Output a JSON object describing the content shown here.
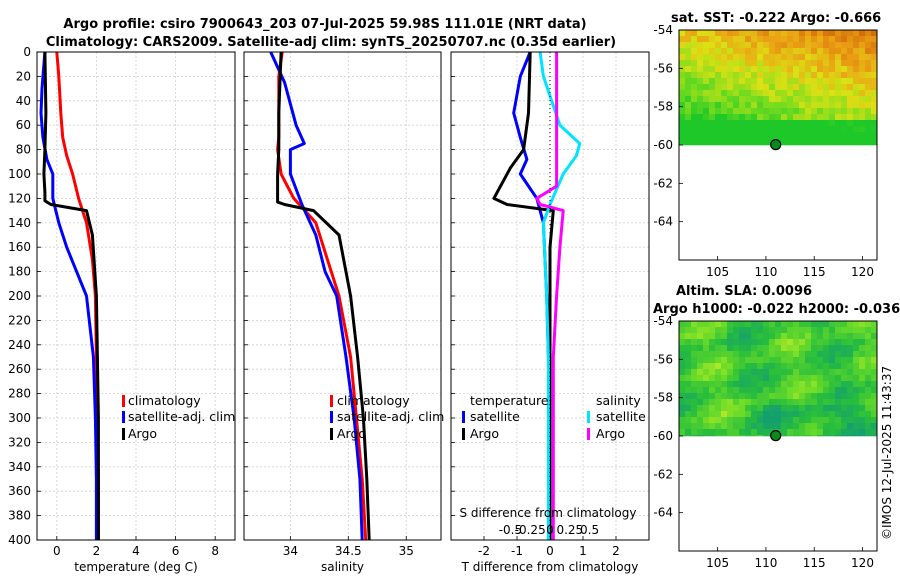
{
  "title_line1": "Argo profile: csiro 7900643_203 07-Jul-2025 59.98S 111.01E (NRT data)",
  "title_line2": "Climatology: CARS2009. Satellite-adj clim: synTS_20250707.nc (0.35d earlier)",
  "colors": {
    "climatology": "#ff0000",
    "satellite": "#0000ff",
    "argo": "#000000",
    "sat_salinity": "#00e5ff",
    "argo_salinity": "#ff00ff"
  },
  "depth_ticks": [
    "0",
    "20",
    "40",
    "60",
    "80",
    "100",
    "120",
    "140",
    "160",
    "180",
    "200",
    "220",
    "240",
    "260",
    "280",
    "300",
    "320",
    "340",
    "360",
    "380",
    "400"
  ],
  "chart_data": [
    {
      "type": "line",
      "id": "temperature",
      "xlabel": "temperature (deg C)",
      "xlim": [
        -1,
        9
      ],
      "ylim": [
        0,
        400
      ],
      "xtick_values": [
        0,
        2,
        4,
        6,
        8
      ],
      "xtick_labels": [
        "0",
        "2",
        "4",
        "6",
        "8"
      ],
      "legend": [
        "climatology",
        "satellite-adj. clim",
        "Argo"
      ],
      "series": [
        {
          "name": "climatology",
          "color": "#ff0000",
          "x": [
            0,
            0.1,
            0.2,
            0.3,
            0.5,
            0.8,
            1.1,
            1.5,
            1.8,
            1.95,
            2.0,
            2.05,
            2.1,
            2.1
          ],
          "y": [
            0,
            20,
            50,
            70,
            85,
            100,
            120,
            140,
            170,
            200,
            250,
            300,
            350,
            400
          ]
        },
        {
          "name": "satellite-adj. clim",
          "color": "#0000ff",
          "x": [
            -0.6,
            -0.75,
            -0.8,
            -0.7,
            -0.5,
            -0.2,
            -0.2,
            0.1,
            0.5,
            1.0,
            1.5,
            1.85,
            1.95,
            2.0,
            2.0
          ],
          "y": [
            0,
            30,
            50,
            70,
            88,
            100,
            120,
            140,
            160,
            180,
            200,
            250,
            300,
            350,
            400
          ]
        },
        {
          "name": "Argo",
          "color": "#000000",
          "x": [
            -0.6,
            -0.55,
            -0.6,
            -0.65,
            -0.6,
            -0.6,
            -0.3,
            1.5,
            1.8,
            2.0,
            2.05,
            2.1,
            2.1,
            2.1
          ],
          "y": [
            0,
            50,
            80,
            100,
            115,
            122,
            125,
            130,
            150,
            200,
            250,
            300,
            350,
            400
          ]
        }
      ]
    },
    {
      "type": "line",
      "id": "salinity",
      "xlabel": "salinity",
      "xlim": [
        33.6,
        35.3
      ],
      "ylim": [
        0,
        400
      ],
      "xtick_values": [
        34,
        34.5,
        35
      ],
      "xtick_labels": [
        "34",
        "34.5",
        "35"
      ],
      "legend": [
        "climatology",
        "satellite-adj. clim",
        "Argo"
      ],
      "series": [
        {
          "name": "climatology",
          "color": "#ff0000",
          "x": [
            33.93,
            33.9,
            33.9,
            33.9,
            33.89,
            33.92,
            34.03,
            34.22,
            34.32,
            34.42,
            34.52,
            34.57,
            34.62,
            34.65
          ],
          "y": [
            0,
            20,
            50,
            70,
            80,
            100,
            120,
            140,
            170,
            200,
            250,
            300,
            350,
            400
          ]
        },
        {
          "name": "satellite-adj. clim",
          "color": "#0000ff",
          "x": [
            33.83,
            33.95,
            34.05,
            34.12,
            34.0,
            34.0,
            34.1,
            34.22,
            34.3,
            34.4,
            34.48,
            34.55,
            34.6,
            34.62
          ],
          "y": [
            0,
            25,
            60,
            75,
            80,
            100,
            125,
            150,
            180,
            200,
            250,
            300,
            350,
            400
          ]
        },
        {
          "name": "Argo",
          "color": "#000000",
          "x": [
            33.92,
            33.9,
            33.9,
            33.89,
            33.89,
            33.89,
            33.95,
            34.2,
            34.42,
            34.52,
            34.58,
            34.63,
            34.66,
            34.68
          ],
          "y": [
            0,
            50,
            80,
            100,
            115,
            123,
            125,
            130,
            150,
            200,
            250,
            300,
            350,
            400
          ]
        }
      ]
    },
    {
      "type": "line",
      "id": "difference",
      "xlabel": "T difference from climatology",
      "xlabel2": "S difference from climatology",
      "xlim": [
        -3,
        3
      ],
      "ylim": [
        0,
        400
      ],
      "xtick_values": [
        -2,
        -1,
        0,
        1,
        2
      ],
      "xtick_labels": [
        "-2",
        "-1",
        "0",
        "1",
        "2"
      ],
      "s_tick_labels": [
        "-0.5",
        "-0.25",
        "0",
        "0.25",
        "0.5"
      ],
      "legend_left_header": "temperature",
      "legend_right_header": "salinity",
      "legend_left": [
        "satellite",
        "Argo"
      ],
      "legend_right": [
        "satellite",
        "Argo"
      ],
      "series": [
        {
          "name": "T satellite",
          "color": "#0000ff",
          "x": [
            -0.6,
            -0.9,
            -1.1,
            -0.9,
            -0.7,
            -0.9,
            -0.4,
            -0.2,
            -0.15,
            -0.1,
            -0.05,
            0,
            0
          ],
          "y": [
            0,
            20,
            50,
            70,
            88,
            100,
            120,
            140,
            170,
            200,
            250,
            300,
            400
          ]
        },
        {
          "name": "T Argo",
          "color": "#000000",
          "x": [
            -0.6,
            -0.65,
            -0.8,
            -1.2,
            -1.5,
            -1.7,
            -1.3,
            0.1,
            0.0,
            0.0,
            0.0,
            0.0,
            0.0
          ],
          "y": [
            0,
            50,
            80,
            95,
            110,
            120,
            125,
            130,
            160,
            200,
            250,
            300,
            400
          ]
        },
        {
          "name": "S satellite",
          "color": "#00e5ff",
          "x": [
            -0.3,
            -0.2,
            0.3,
            0.9,
            0.8,
            0.4,
            0.0,
            -0.2,
            -0.15,
            -0.1,
            -0.05,
            -0.05,
            -0.05
          ],
          "y": [
            0,
            20,
            60,
            75,
            85,
            100,
            125,
            140,
            170,
            200,
            250,
            300,
            400
          ]
        },
        {
          "name": "S Argo",
          "color": "#ff00ff",
          "x": [
            0.2,
            0.2,
            0.2,
            0.2,
            0.2,
            -0.4,
            -0.3,
            0.4,
            0.3,
            0.2,
            0.1,
            0.1,
            0.1
          ],
          "y": [
            0,
            40,
            80,
            100,
            110,
            120,
            125,
            130,
            160,
            200,
            250,
            300,
            400
          ]
        }
      ]
    },
    {
      "type": "heatmap",
      "id": "sst_map",
      "title": "sat. SST: -0.222 Argo: -0.666",
      "xlim": [
        101,
        121.5
      ],
      "ylim": [
        -66,
        -54
      ],
      "xtick_values": [
        105,
        110,
        115,
        120
      ],
      "xtick_labels": [
        "105",
        "110",
        "115",
        "120"
      ],
      "ytick_values": [
        -54,
        -56,
        -58,
        -60,
        -62,
        -64
      ],
      "ytick_labels": [
        "-54",
        "-56",
        "-58",
        "-60",
        "-62",
        "-64"
      ],
      "data_extent_lat": [
        -60,
        -54
      ],
      "argo_position": {
        "lon": 111.01,
        "lat": -59.98
      }
    },
    {
      "type": "heatmap",
      "id": "sla_map",
      "title": "Altim. SLA: 0.0096",
      "subtitle": "Argo h1000: -0.022 h2000: -0.036",
      "xlim": [
        101,
        121.5
      ],
      "ylim": [
        -66,
        -54
      ],
      "xtick_values": [
        105,
        110,
        115,
        120
      ],
      "xtick_labels": [
        "105",
        "110",
        "115",
        "120"
      ],
      "ytick_values": [
        -54,
        -56,
        -58,
        -60,
        -62,
        -64
      ],
      "ytick_labels": [
        "-54",
        "-56",
        "-58",
        "-60",
        "-62",
        "-64"
      ],
      "data_extent_lat": [
        -60,
        -54
      ],
      "argo_position": {
        "lon": 111.01,
        "lat": -59.98
      }
    }
  ],
  "watermark": "©IMOS 12-Jul-2025 11:43:37"
}
